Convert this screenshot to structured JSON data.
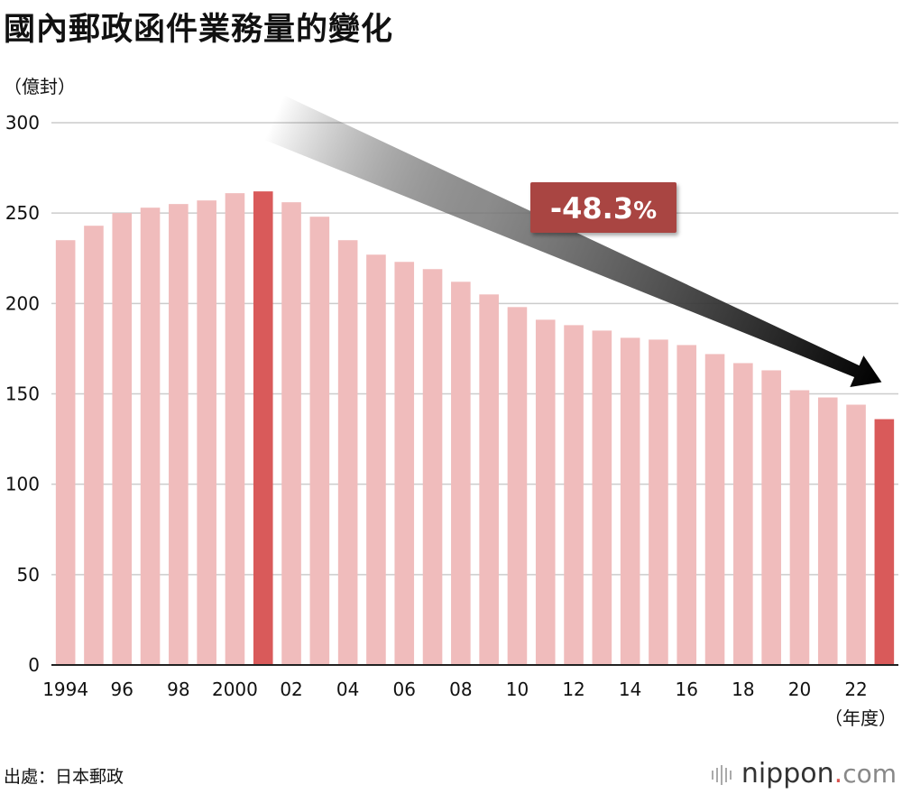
{
  "title": "國內郵政函件業務量的變化",
  "source": "出處：日本郵政",
  "brand": {
    "name": "nippon",
    "dot": ".",
    "tld": "com"
  },
  "chart_data": {
    "type": "bar",
    "title": "國內郵政函件業務量的變化",
    "ylabel": "（億封）",
    "xlabel": "（年度）",
    "ylim": [
      0,
      300
    ],
    "yticks": [
      0,
      50,
      100,
      150,
      200,
      250,
      300
    ],
    "grid": true,
    "categories": [
      1994,
      1995,
      1996,
      1997,
      1998,
      1999,
      2000,
      2001,
      2002,
      2003,
      2004,
      2005,
      2006,
      2007,
      2008,
      2009,
      2010,
      2011,
      2012,
      2013,
      2014,
      2015,
      2016,
      2017,
      2018,
      2019,
      2020,
      2021,
      2022,
      2023
    ],
    "x_tick_labels": [
      {
        "year": 1994,
        "label": "1994"
      },
      {
        "year": 1996,
        "label": "96"
      },
      {
        "year": 1998,
        "label": "98"
      },
      {
        "year": 2000,
        "label": "2000"
      },
      {
        "year": 2002,
        "label": "02"
      },
      {
        "year": 2004,
        "label": "04"
      },
      {
        "year": 2006,
        "label": "06"
      },
      {
        "year": 2008,
        "label": "08"
      },
      {
        "year": 2010,
        "label": "10"
      },
      {
        "year": 2012,
        "label": "12"
      },
      {
        "year": 2014,
        "label": "14"
      },
      {
        "year": 2016,
        "label": "16"
      },
      {
        "year": 2018,
        "label": "18"
      },
      {
        "year": 2020,
        "label": "20"
      },
      {
        "year": 2022,
        "label": "22"
      }
    ],
    "values": [
      235,
      243,
      250,
      253,
      255,
      257,
      261,
      262,
      256,
      248,
      235,
      227,
      223,
      219,
      212,
      205,
      198,
      191,
      188,
      185,
      181,
      180,
      177,
      172,
      167,
      163,
      152,
      148,
      144,
      136
    ],
    "highlighted": [
      2001,
      2023
    ],
    "colors": {
      "bar": "#f0bcbc",
      "highlight": "#d95a5a",
      "grid": "#cccccc",
      "badge": "#a94442"
    },
    "annotation": {
      "text": "-48.3",
      "suffix": "%",
      "from": 2001,
      "to": 2023
    }
  }
}
